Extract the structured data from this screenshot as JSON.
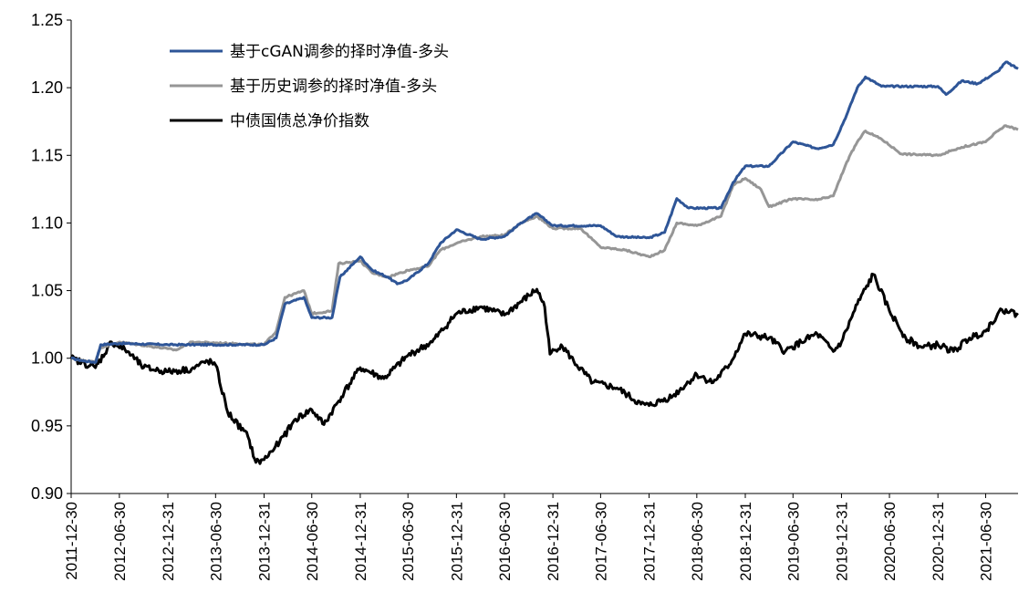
{
  "chart_data": {
    "type": "line",
    "title": "",
    "xlabel": "",
    "ylabel": "",
    "ylim": [
      0.9,
      1.25
    ],
    "y_ticks": [
      "0.90",
      "0.95",
      "1.00",
      "1.05",
      "1.10",
      "1.15",
      "1.20",
      "1.25"
    ],
    "x_ticks": [
      "2011-12-30",
      "2012-06-30",
      "2012-12-31",
      "2013-06-30",
      "2013-12-31",
      "2014-06-30",
      "2014-12-31",
      "2015-06-30",
      "2015-12-31",
      "2016-06-30",
      "2016-12-31",
      "2017-06-30",
      "2017-12-31",
      "2018-06-30",
      "2018-12-31",
      "2019-06-30",
      "2019-12-31",
      "2020-06-30",
      "2020-12-31",
      "2021-06-30"
    ],
    "x_range": [
      "2011-12-30",
      "2021-10-31"
    ],
    "grid": false,
    "legend_position": "top-left",
    "series": [
      {
        "name": "基于cGAN调参的择时净值-多头",
        "color": "#2e5597",
        "points": [
          [
            "2011-12-30",
            1.0
          ],
          [
            "2012-02-15",
            0.998
          ],
          [
            "2012-04-01",
            0.997
          ],
          [
            "2012-04-20",
            1.01
          ],
          [
            "2012-06-30",
            1.011
          ],
          [
            "2012-12-31",
            1.01
          ],
          [
            "2013-03-31",
            1.01
          ],
          [
            "2013-12-31",
            1.01
          ],
          [
            "2014-02-15",
            1.015
          ],
          [
            "2014-03-20",
            1.04
          ],
          [
            "2014-05-31",
            1.045
          ],
          [
            "2014-06-30",
            1.03
          ],
          [
            "2014-09-15",
            1.03
          ],
          [
            "2014-10-15",
            1.06
          ],
          [
            "2014-12-31",
            1.075
          ],
          [
            "2015-02-15",
            1.065
          ],
          [
            "2015-04-15",
            1.06
          ],
          [
            "2015-05-20",
            1.055
          ],
          [
            "2015-06-30",
            1.058
          ],
          [
            "2015-09-15",
            1.07
          ],
          [
            "2015-10-31",
            1.085
          ],
          [
            "2015-12-31",
            1.095
          ],
          [
            "2016-03-31",
            1.088
          ],
          [
            "2016-06-30",
            1.09
          ],
          [
            "2016-08-31",
            1.1
          ],
          [
            "2016-10-31",
            1.107
          ],
          [
            "2016-12-31",
            1.098
          ],
          [
            "2017-06-30",
            1.098
          ],
          [
            "2017-08-31",
            1.09
          ],
          [
            "2017-12-31",
            1.089
          ],
          [
            "2018-02-28",
            1.093
          ],
          [
            "2018-04-15",
            1.118
          ],
          [
            "2018-05-31",
            1.111
          ],
          [
            "2018-09-30",
            1.111
          ],
          [
            "2018-11-15",
            1.13
          ],
          [
            "2018-12-31",
            1.142
          ],
          [
            "2019-03-31",
            1.142
          ],
          [
            "2019-04-30",
            1.148
          ],
          [
            "2019-06-30",
            1.16
          ],
          [
            "2019-09-30",
            1.155
          ],
          [
            "2019-11-30",
            1.158
          ],
          [
            "2020-01-20",
            1.18
          ],
          [
            "2020-02-29",
            1.2
          ],
          [
            "2020-03-31",
            1.208
          ],
          [
            "2020-05-31",
            1.201
          ],
          [
            "2020-12-31",
            1.201
          ],
          [
            "2021-01-31",
            1.195
          ],
          [
            "2021-03-31",
            1.205
          ],
          [
            "2021-05-31",
            1.203
          ],
          [
            "2021-08-15",
            1.212
          ],
          [
            "2021-09-15",
            1.219
          ],
          [
            "2021-10-31",
            1.214
          ]
        ]
      },
      {
        "name": "基于历史调参的择时净值-多头",
        "color": "#969696",
        "points": [
          [
            "2011-12-30",
            1.0
          ],
          [
            "2012-02-15",
            0.998
          ],
          [
            "2012-04-01",
            0.998
          ],
          [
            "2012-04-20",
            1.008
          ],
          [
            "2012-06-30",
            1.012
          ],
          [
            "2012-12-31",
            1.007
          ],
          [
            "2013-01-31",
            1.006
          ],
          [
            "2013-03-31",
            1.012
          ],
          [
            "2013-12-31",
            1.01
          ],
          [
            "2014-02-15",
            1.02
          ],
          [
            "2014-03-20",
            1.045
          ],
          [
            "2014-05-31",
            1.05
          ],
          [
            "2014-06-30",
            1.033
          ],
          [
            "2014-09-15",
            1.035
          ],
          [
            "2014-10-10",
            1.07
          ],
          [
            "2014-12-31",
            1.072
          ],
          [
            "2015-02-15",
            1.063
          ],
          [
            "2015-04-15",
            1.06
          ],
          [
            "2015-06-30",
            1.065
          ],
          [
            "2015-09-15",
            1.068
          ],
          [
            "2015-10-31",
            1.08
          ],
          [
            "2015-12-31",
            1.085
          ],
          [
            "2016-03-31",
            1.09
          ],
          [
            "2016-06-30",
            1.091
          ],
          [
            "2016-08-31",
            1.1
          ],
          [
            "2016-10-31",
            1.105
          ],
          [
            "2016-12-31",
            1.096
          ],
          [
            "2017-04-15",
            1.096
          ],
          [
            "2017-06-30",
            1.082
          ],
          [
            "2017-09-30",
            1.08
          ],
          [
            "2017-12-31",
            1.075
          ],
          [
            "2018-02-28",
            1.08
          ],
          [
            "2018-04-15",
            1.1
          ],
          [
            "2018-06-30",
            1.098
          ],
          [
            "2018-09-30",
            1.105
          ],
          [
            "2018-11-15",
            1.128
          ],
          [
            "2018-12-31",
            1.133
          ],
          [
            "2019-02-28",
            1.125
          ],
          [
            "2019-03-31",
            1.112
          ],
          [
            "2019-06-30",
            1.118
          ],
          [
            "2019-09-30",
            1.117
          ],
          [
            "2019-11-30",
            1.12
          ],
          [
            "2020-01-20",
            1.145
          ],
          [
            "2020-02-29",
            1.16
          ],
          [
            "2020-03-31",
            1.168
          ],
          [
            "2020-05-31",
            1.162
          ],
          [
            "2020-08-15",
            1.151
          ],
          [
            "2020-12-31",
            1.15
          ],
          [
            "2021-03-31",
            1.156
          ],
          [
            "2021-06-30",
            1.16
          ],
          [
            "2021-08-15",
            1.168
          ],
          [
            "2021-09-15",
            1.172
          ],
          [
            "2021-10-31",
            1.169
          ]
        ]
      },
      {
        "name": "中债国债总净价指数",
        "color": "#000000",
        "points": [
          [
            "2011-12-30",
            1.0
          ],
          [
            "2012-03-31",
            0.993
          ],
          [
            "2012-05-31",
            1.012
          ],
          [
            "2012-07-31",
            1.005
          ],
          [
            "2012-09-30",
            0.993
          ],
          [
            "2012-12-31",
            0.99
          ],
          [
            "2013-03-31",
            0.992
          ],
          [
            "2013-05-31",
            0.998
          ],
          [
            "2013-06-30",
            0.995
          ],
          [
            "2013-08-15",
            0.96
          ],
          [
            "2013-10-31",
            0.942
          ],
          [
            "2013-11-30",
            0.923
          ],
          [
            "2013-12-31",
            0.925
          ],
          [
            "2014-02-28",
            0.938
          ],
          [
            "2014-04-30",
            0.955
          ],
          [
            "2014-06-30",
            0.962
          ],
          [
            "2014-08-15",
            0.951
          ],
          [
            "2014-10-31",
            0.975
          ],
          [
            "2014-12-31",
            0.993
          ],
          [
            "2015-03-31",
            0.985
          ],
          [
            "2015-06-30",
            1.002
          ],
          [
            "2015-09-30",
            1.012
          ],
          [
            "2015-12-31",
            1.033
          ],
          [
            "2016-03-31",
            1.038
          ],
          [
            "2016-06-30",
            1.032
          ],
          [
            "2016-10-31",
            1.051
          ],
          [
            "2016-11-30",
            1.038
          ],
          [
            "2016-12-20",
            1.003
          ],
          [
            "2017-01-31",
            1.01
          ],
          [
            "2017-03-31",
            0.995
          ],
          [
            "2017-05-31",
            0.982
          ],
          [
            "2017-08-31",
            0.978
          ],
          [
            "2017-11-30",
            0.966
          ],
          [
            "2017-12-31",
            0.965
          ],
          [
            "2018-03-31",
            0.972
          ],
          [
            "2018-06-30",
            0.988
          ],
          [
            "2018-08-31",
            0.982
          ],
          [
            "2018-10-31",
            0.995
          ],
          [
            "2018-12-31",
            1.018
          ],
          [
            "2019-03-31",
            1.015
          ],
          [
            "2019-05-31",
            1.005
          ],
          [
            "2019-07-31",
            1.012
          ],
          [
            "2019-09-30",
            1.018
          ],
          [
            "2019-11-30",
            1.005
          ],
          [
            "2019-12-31",
            1.012
          ],
          [
            "2020-02-29",
            1.04
          ],
          [
            "2020-04-30",
            1.062
          ],
          [
            "2020-06-30",
            1.035
          ],
          [
            "2020-08-31",
            1.015
          ],
          [
            "2020-10-31",
            1.008
          ],
          [
            "2020-12-31",
            1.01
          ],
          [
            "2021-02-28",
            1.005
          ],
          [
            "2021-04-30",
            1.015
          ],
          [
            "2021-06-30",
            1.02
          ],
          [
            "2021-08-15",
            1.033
          ],
          [
            "2021-09-15",
            1.036
          ],
          [
            "2021-10-31",
            1.032
          ]
        ]
      }
    ]
  }
}
